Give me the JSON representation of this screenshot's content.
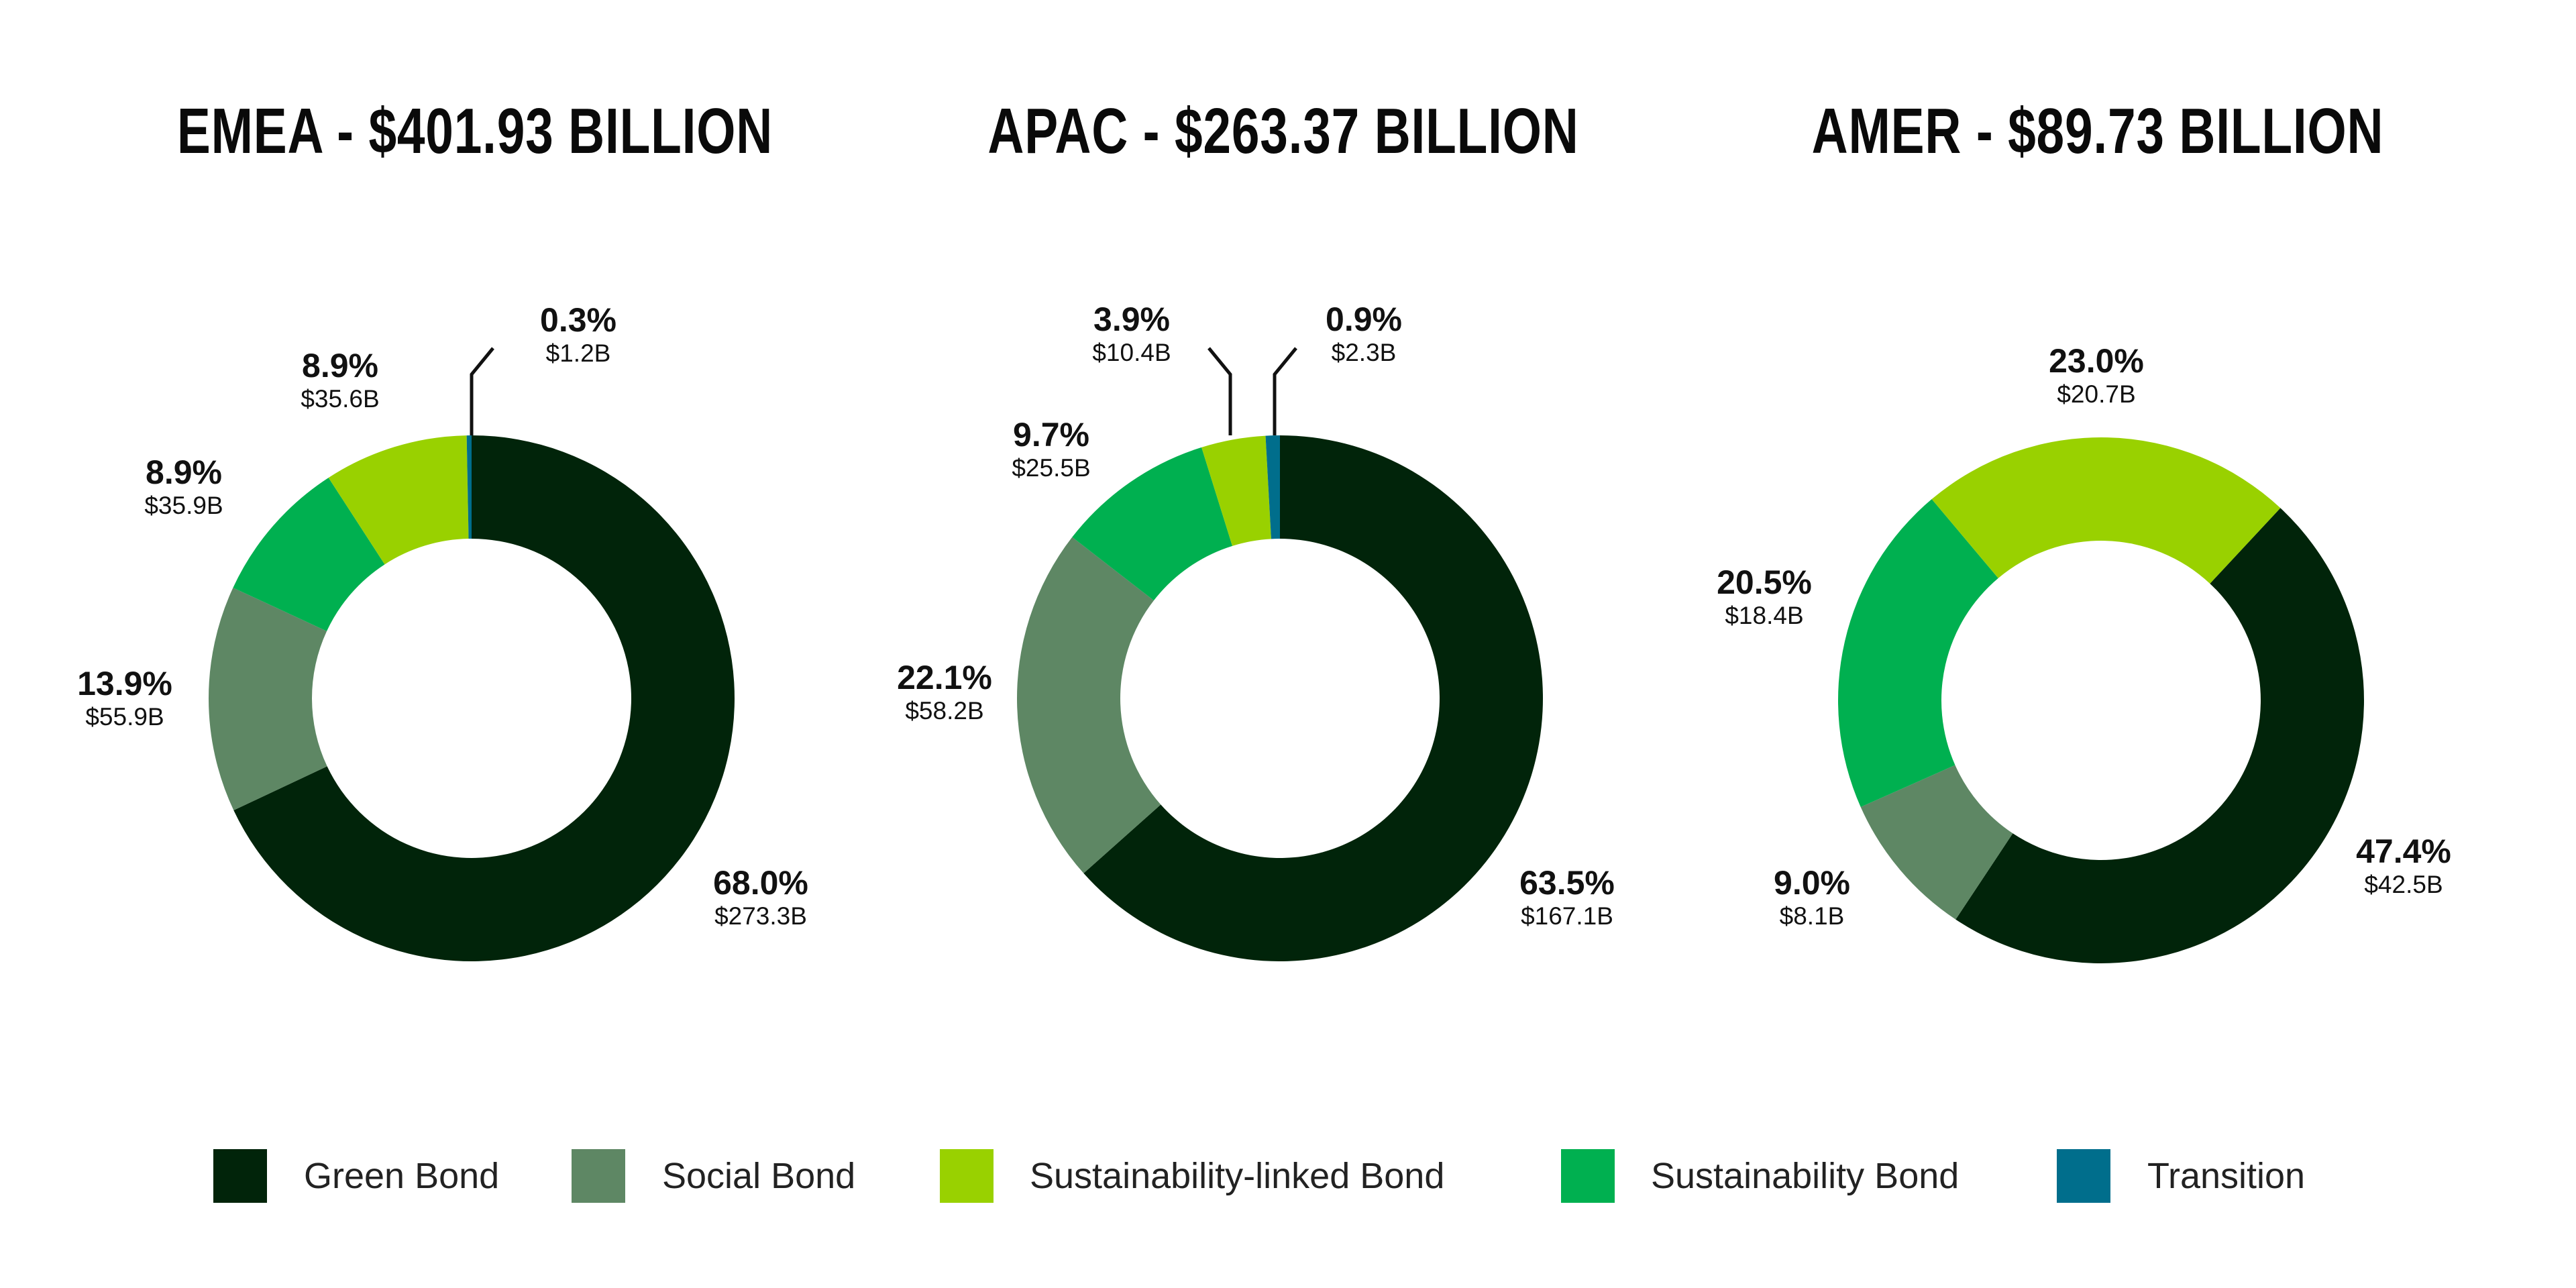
{
  "chart_data": [
    {
      "type": "pie",
      "title": "EMEA - $401.93 BILLION",
      "categories": [
        "Green Bond",
        "Social Bond",
        "Sustainability Bond",
        "Sustainability-linked Bond",
        "Transition"
      ],
      "values": [
        273.3,
        55.9,
        35.9,
        35.6,
        1.2
      ],
      "percents": [
        68.0,
        13.9,
        8.9,
        8.9,
        0.3
      ],
      "labels": [
        {
          "pct": "68.0%",
          "val": "$273.3B"
        },
        {
          "pct": "13.9%",
          "val": "$55.9B"
        },
        {
          "pct": "8.9%",
          "val": "$35.9B"
        },
        {
          "pct": "8.9%",
          "val": "$35.6B"
        },
        {
          "pct": "0.3%",
          "val": "$1.2B"
        }
      ],
      "start_angle_deg": 0
    },
    {
      "type": "pie",
      "title": "APAC - $263.37 BILLION",
      "categories": [
        "Green Bond",
        "Social Bond",
        "Sustainability Bond",
        "Sustainability-linked Bond",
        "Transition"
      ],
      "values": [
        167.1,
        58.2,
        25.5,
        10.4,
        2.3
      ],
      "percents": [
        63.5,
        22.1,
        9.7,
        3.9,
        0.9
      ],
      "labels": [
        {
          "pct": "63.5%",
          "val": "$167.1B"
        },
        {
          "pct": "22.1%",
          "val": "$58.2B"
        },
        {
          "pct": "9.7%",
          "val": "$25.5B"
        },
        {
          "pct": "3.9%",
          "val": "$10.4B"
        },
        {
          "pct": "0.9%",
          "val": "$2.3B"
        }
      ],
      "start_angle_deg": 0
    },
    {
      "type": "pie",
      "title": "AMER - $89.73 BILLION",
      "categories": [
        "Green Bond",
        "Social Bond",
        "Sustainability Bond",
        "Sustainability-linked Bond"
      ],
      "values": [
        42.5,
        8.1,
        18.4,
        20.7
      ],
      "percents": [
        47.4,
        9.0,
        20.5,
        23.0
      ],
      "labels": [
        {
          "pct": "47.4%",
          "val": "$42.5B"
        },
        {
          "pct": "9.0%",
          "val": "$8.1B"
        },
        {
          "pct": "20.5%",
          "val": "$18.4B"
        },
        {
          "pct": "23.0%",
          "val": "$20.7B"
        }
      ],
      "start_angle_deg": 43
    }
  ],
  "legend": [
    {
      "label": "Green Bond",
      "color": "#01240a"
    },
    {
      "label": "Social Bond",
      "color": "#5e8764"
    },
    {
      "label": "Sustainability-linked Bond",
      "color": "#99d100"
    },
    {
      "label": "Sustainability Bond",
      "color": "#00b050"
    },
    {
      "label": "Transition",
      "color": "#006e8c"
    }
  ],
  "colors": {
    "Green Bond": "#01240a",
    "Social Bond": "#5e8764",
    "Sustainability-linked Bond": "#99d100",
    "Sustainability Bond": "#00b050",
    "Transition": "#006e8c"
  }
}
